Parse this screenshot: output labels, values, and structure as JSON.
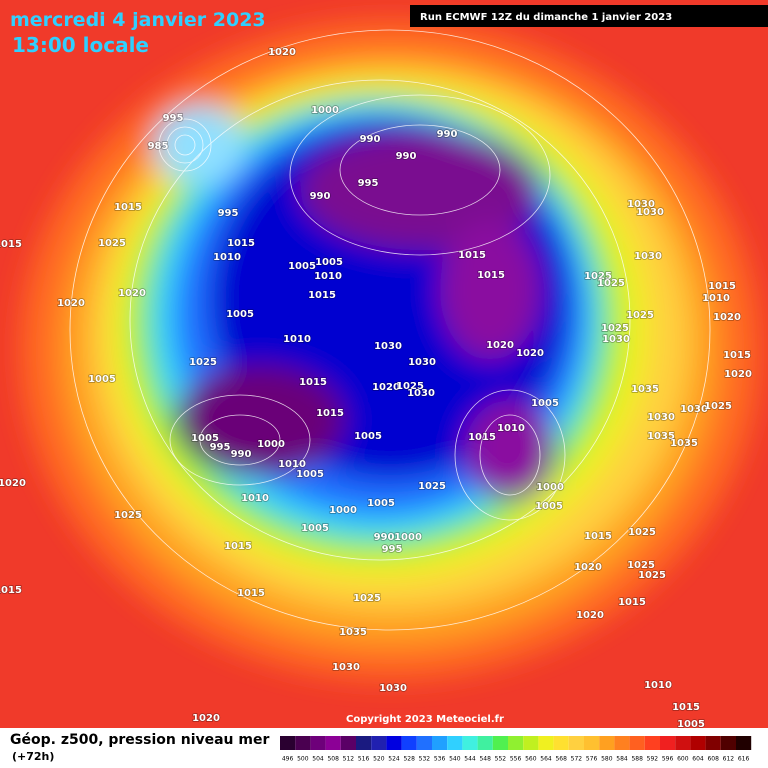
{
  "header": {
    "date": "mercredi 4 janvier 2023",
    "time": "13:00 locale",
    "run": "Run ECMWF 12Z du dimanche 1 janvier 2023"
  },
  "copyright": "Copyright 2023 Meteociel.fr",
  "legend": {
    "title": "Géop. z500, pression niveau mer",
    "subtitle": "(+72h)",
    "scale": [
      496,
      500,
      504,
      508,
      512,
      516,
      520,
      524,
      528,
      532,
      536,
      540,
      544,
      548,
      552,
      556,
      560,
      564,
      568,
      572,
      576,
      580,
      584,
      588,
      592,
      596,
      600,
      604,
      608,
      612,
      616
    ],
    "colors": [
      "#2a0030",
      "#4a0050",
      "#6e007a",
      "#8c0096",
      "#5a0066",
      "#1a1a80",
      "#2020b0",
      "#0000e0",
      "#1040ff",
      "#2070ff",
      "#20a0ff",
      "#30d0ff",
      "#40f0e0",
      "#40f0a0",
      "#50f050",
      "#90f030",
      "#c0f020",
      "#f0f020",
      "#ffe030",
      "#ffd040",
      "#ffc030",
      "#ffa020",
      "#ff8020",
      "#ff6020",
      "#ff4020",
      "#f02020",
      "#d01010",
      "#b00000",
      "#800000",
      "#500000",
      "#200000"
    ]
  },
  "isobar_labels": [
    1020,
    1000,
    995,
    985,
    990,
    990,
    990,
    995,
    990,
    1015,
    995,
    1015,
    1025,
    1015,
    1010,
    1005,
    1005,
    1010,
    1015,
    1020,
    1020,
    1005,
    1030,
    1030,
    1010,
    1025,
    1005,
    1015,
    1020,
    1025,
    1030,
    1015,
    1005,
    995,
    990,
    1000,
    1010,
    1005,
    1005,
    1020,
    1025,
    1010,
    1000,
    1005,
    1005,
    990,
    1000,
    995,
    1015,
    1015,
    1015,
    1025,
    1035,
    1030,
    1030,
    1020,
    1025,
    1015,
    1010,
    1005,
    1000,
    1005,
    1020,
    1020,
    1015,
    1015,
    1030,
    1030,
    1030,
    1025,
    1025,
    1015,
    1010,
    1020,
    1025,
    1025,
    1030,
    1015,
    1020,
    1035,
    1030,
    1030,
    1025,
    1035,
    1035,
    1015,
    1025,
    1020,
    1025,
    1025,
    1020,
    1015,
    1010,
    1015,
    1005
  ]
}
